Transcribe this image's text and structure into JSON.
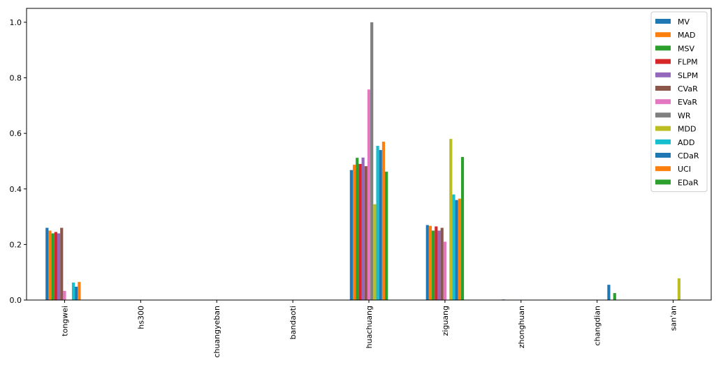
{
  "chart_data": {
    "type": "bar",
    "categories": [
      "tongwei",
      "hs300",
      "chuangyeban",
      "bandaoti",
      "huachuang",
      "ziguang",
      "zhonghuan",
      "changdian",
      "san'an"
    ],
    "series": [
      {
        "name": "MV",
        "color": "#1f77b4",
        "values": [
          0.26,
          0,
          0,
          0,
          0.468,
          0.27,
          0.002,
          0,
          0
        ]
      },
      {
        "name": "MAD",
        "color": "#ff7f0e",
        "values": [
          0.25,
          0,
          0,
          0,
          0.487,
          0.267,
          0,
          0,
          0
        ]
      },
      {
        "name": "MSV",
        "color": "#2ca02c",
        "values": [
          0.24,
          0,
          0,
          0,
          0.512,
          0.25,
          0,
          0,
          0
        ]
      },
      {
        "name": "FLPM",
        "color": "#d62728",
        "values": [
          0.245,
          0,
          0,
          0,
          0.49,
          0.265,
          0,
          0,
          0
        ]
      },
      {
        "name": "SLPM",
        "color": "#9467bd",
        "values": [
          0.24,
          0,
          0,
          0,
          0.513,
          0.25,
          0,
          0,
          0
        ]
      },
      {
        "name": "CVaR",
        "color": "#8c564b",
        "values": [
          0.26,
          0,
          0,
          0,
          0.482,
          0.26,
          0,
          0,
          0
        ]
      },
      {
        "name": "EVaR",
        "color": "#e377c2",
        "values": [
          0.033,
          0,
          0,
          0,
          0.758,
          0.21,
          0,
          0,
          0
        ]
      },
      {
        "name": "WR",
        "color": "#7f7f7f",
        "values": [
          0,
          0,
          0,
          0,
          1.0,
          0,
          0,
          0,
          0
        ]
      },
      {
        "name": "MDD",
        "color": "#bcbd22",
        "values": [
          0,
          0,
          0,
          0,
          0.345,
          0.58,
          0,
          0,
          0.078
        ]
      },
      {
        "name": "ADD",
        "color": "#17becf",
        "values": [
          0.063,
          0,
          0,
          0,
          0.555,
          0.38,
          0,
          0,
          0
        ]
      },
      {
        "name": "CDaR",
        "color": "#1f77b4",
        "values": [
          0.048,
          0,
          0,
          0,
          0.54,
          0.36,
          0,
          0.055,
          0
        ]
      },
      {
        "name": "UCI",
        "color": "#ff7f0e",
        "values": [
          0.065,
          0,
          0,
          0,
          0.57,
          0.365,
          0,
          0,
          0
        ]
      },
      {
        "name": "EDaR",
        "color": "#2ca02c",
        "values": [
          0,
          0,
          0,
          0,
          0.462,
          0.515,
          0,
          0.025,
          0
        ]
      }
    ],
    "ylim": [
      0,
      1.05
    ],
    "yticks": [
      {
        "value": 0,
        "label": "0.0"
      },
      {
        "value": 0.2,
        "label": "0.2"
      },
      {
        "value": 0.4,
        "label": "0.4"
      },
      {
        "value": 0.6,
        "label": "0.6"
      },
      {
        "value": 0.8,
        "label": "0.8"
      },
      {
        "value": 1.0,
        "label": "1.0"
      }
    ],
    "legend": "upper right"
  }
}
